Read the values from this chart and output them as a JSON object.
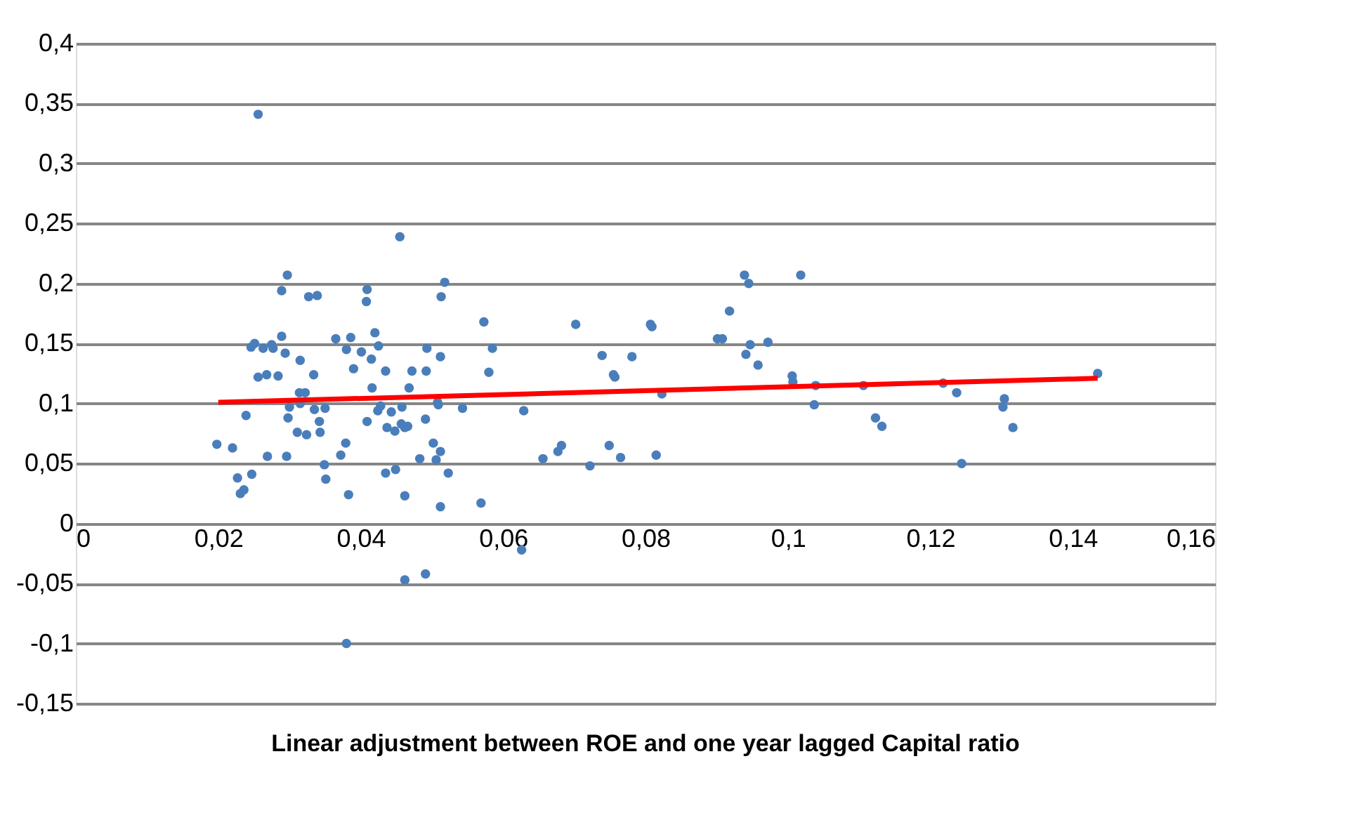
{
  "chart_data": {
    "type": "scatter",
    "xlabel": "Linear adjustment between ROE and one year lagged Capital ratio",
    "xlim": [
      0,
      0.16
    ],
    "ylim": [
      -0.15,
      0.4
    ],
    "xticks": [
      0,
      {
        "value": 0.02,
        "label": "0,02"
      },
      {
        "value": 0.04,
        "label": "0,04"
      },
      {
        "value": 0.06,
        "label": "0,06"
      },
      {
        "value": 0.08,
        "label": "0,08"
      },
      {
        "value": 0.1,
        "label": "0,1"
      },
      {
        "value": 0.12,
        "label": "0,12"
      },
      {
        "value": 0.14,
        "label": "0,14"
      },
      {
        "value": 0.16,
        "label": "0,16"
      }
    ],
    "yticks": [
      {
        "value": -0.15,
        "label": "-0,15"
      },
      {
        "value": -0.1,
        "label": "-0,1"
      },
      {
        "value": -0.05,
        "label": "-0,05"
      },
      0,
      {
        "value": 0.05,
        "label": "0,05"
      },
      {
        "value": 0.1,
        "label": "0,1"
      },
      {
        "value": 0.15,
        "label": "0,15"
      },
      {
        "value": 0.2,
        "label": "0,2"
      },
      {
        "value": 0.25,
        "label": "0,25"
      },
      {
        "value": 0.3,
        "label": "0,3"
      },
      {
        "value": 0.35,
        "label": "0,35"
      },
      {
        "value": 0.4,
        "label": "0,4"
      }
    ],
    "grid": "y",
    "marker": "circle",
    "series": [
      {
        "color": "#4a7ebb",
        "x": [
          0.0198,
          0.022,
          0.0227,
          0.0231,
          0.0236,
          0.0239,
          0.0247,
          0.0246,
          0.0251,
          0.0256,
          0.0263,
          0.0268,
          0.0269,
          0.0275,
          0.0277,
          0.0284,
          0.0289,
          0.0289,
          0.0294,
          0.0297,
          0.0296,
          0.0298,
          0.03,
          0.0311,
          0.0314,
          0.0315,
          0.0315,
          0.0322,
          0.0324,
          0.0327,
          0.0334,
          0.0335,
          0.0339,
          0.0342,
          0.0343,
          0.0349,
          0.0351,
          0.035,
          0.0365,
          0.0372,
          0.0379,
          0.038,
          0.0383,
          0.0386,
          0.039,
          0.0401,
          0.0409,
          0.0408,
          0.0409,
          0.0415,
          0.0416,
          0.042,
          0.0425,
          0.0424,
          0.0428,
          0.0435,
          0.0435,
          0.0437,
          0.0443,
          0.0449,
          0.0448,
          0.0455,
          0.0458,
          0.0457,
          0.0462,
          0.0468,
          0.0472,
          0.0466,
          0.0462,
          0.0483,
          0.0491,
          0.0492,
          0.0493,
          0.0502,
          0.0506,
          0.0508,
          0.0509,
          0.0512,
          0.0513,
          0.0518,
          0.0512,
          0.0512,
          0.0523,
          0.0543,
          0.0462,
          0.0491,
          0.0256,
          0.038,
          0.0573,
          0.0585,
          0.058,
          0.0569,
          0.0629,
          0.0626,
          0.0656,
          0.0677,
          0.0682,
          0.0702,
          0.0722,
          0.0739,
          0.0749,
          0.0755,
          0.0757,
          0.0765,
          0.0781,
          0.0807,
          0.0809,
          0.0815,
          0.0823,
          0.0901,
          0.0908,
          0.0918,
          0.0939,
          0.0945,
          0.0947,
          0.0941,
          0.0958,
          0.0972,
          0.1006,
          0.1007,
          0.1018,
          0.1039,
          0.1037,
          0.1106,
          0.1123,
          0.1132,
          0.1218,
          0.1237,
          0.1244,
          0.1304,
          0.1302,
          0.1316,
          0.1435
        ],
        "values": [
          0.066,
          0.063,
          0.038,
          0.025,
          0.028,
          0.09,
          0.041,
          0.147,
          0.15,
          0.122,
          0.146,
          0.124,
          0.056,
          0.149,
          0.146,
          0.123,
          0.194,
          0.156,
          0.142,
          0.207,
          0.056,
          0.088,
          0.097,
          0.076,
          0.109,
          0.136,
          0.1,
          0.109,
          0.074,
          0.189,
          0.124,
          0.095,
          0.19,
          0.085,
          0.076,
          0.049,
          0.037,
          0.096,
          0.154,
          0.057,
          0.067,
          0.145,
          0.024,
          0.155,
          0.129,
          0.143,
          0.195,
          0.185,
          0.085,
          0.137,
          0.113,
          0.159,
          0.148,
          0.094,
          0.098,
          0.042,
          0.127,
          0.08,
          0.093,
          0.045,
          0.077,
          0.239,
          0.097,
          0.083,
          0.023,
          0.113,
          0.127,
          0.081,
          0.08,
          0.054,
          0.087,
          0.127,
          0.146,
          0.067,
          0.053,
          0.101,
          0.099,
          0.06,
          0.189,
          0.201,
          0.139,
          0.014,
          0.042,
          0.096,
          -0.047,
          -0.042,
          0.341,
          -0.1,
          0.168,
          0.146,
          0.126,
          0.017,
          0.094,
          -0.022,
          0.054,
          0.06,
          0.065,
          0.166,
          0.048,
          0.14,
          0.065,
          0.124,
          0.122,
          0.055,
          0.139,
          0.166,
          0.164,
          0.057,
          0.108,
          0.154,
          0.154,
          0.177,
          0.207,
          0.2,
          0.149,
          0.141,
          0.132,
          0.151,
          0.123,
          0.118,
          0.207,
          0.115,
          0.099,
          0.115,
          0.088,
          0.081,
          0.117,
          0.109,
          0.05,
          0.104,
          0.097,
          0.08,
          0.125
        ]
      },
      {
        "type": "line",
        "color": "#ff0000",
        "marker": "none",
        "line_style": "solid",
        "x": [
          0.02,
          0.1435
        ],
        "values": [
          0.101,
          0.121
        ]
      }
    ]
  }
}
